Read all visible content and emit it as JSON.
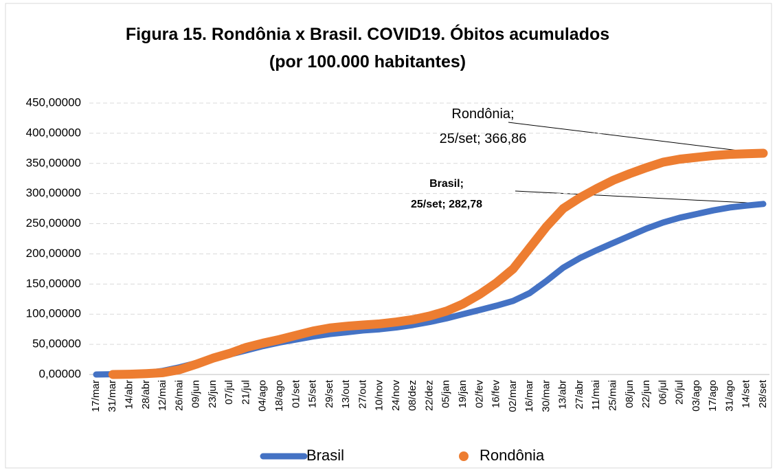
{
  "chart_data": {
    "type": "line",
    "title_lines": [
      "Figura 15. Rondônia x Brasil. COVID19. Óbitos acumulados",
      "(por 100.000 habitantes)"
    ],
    "categories": [
      "17/mar",
      "31/mar",
      "14/abr",
      "28/abr",
      "12/mai",
      "26/mai",
      "09/jun",
      "23/jun",
      "07/jul",
      "21/jul",
      "04/ago",
      "18/ago",
      "01/set",
      "15/set",
      "29/set",
      "13/out",
      "27/out",
      "10/nov",
      "24/nov",
      "08/dez",
      "22/dez",
      "05/jan",
      "19/jan",
      "02/fev",
      "16/fev",
      "02/mar",
      "16/mar",
      "30/mar",
      "13/abr",
      "27/abr",
      "11/mai",
      "25/mai",
      "08/jun",
      "22/jun",
      "06/jul",
      "20/jul",
      "03/ago",
      "17/ago",
      "31/ago",
      "14/set",
      "28/set"
    ],
    "series": [
      {
        "name": "Brasil",
        "color": "#4472c4",
        "values": [
          0,
          0.5,
          1,
          2.5,
          6,
          12,
          19,
          26,
          33,
          40,
          47,
          53,
          58,
          63,
          67,
          70,
          73,
          75,
          78,
          82,
          87,
          93,
          100,
          107,
          114,
          122,
          135,
          155,
          177,
          193,
          206,
          218,
          230,
          242,
          252,
          260,
          266,
          272,
          277,
          280,
          282.78
        ]
      },
      {
        "name": "Rondônia",
        "color": "#ed7d31",
        "values": [
          null,
          0,
          0.5,
          1.5,
          3,
          8,
          17,
          27,
          35,
          45,
          52,
          58,
          65,
          72,
          77,
          80,
          82,
          84,
          87,
          91,
          97,
          105,
          117,
          133,
          152,
          175,
          210,
          245,
          275,
          293,
          308,
          322,
          333,
          343,
          352,
          357,
          360,
          363,
          365,
          366,
          366.86
        ]
      }
    ],
    "annotations": [
      {
        "lines": [
          "Rondônia;",
          "25/set; 366,86"
        ]
      },
      {
        "lines": [
          "Brasil;",
          "25/set; 282,78"
        ]
      }
    ],
    "ylim": [
      0,
      450
    ],
    "yticks": [
      {
        "value": 0,
        "label": "0,00000"
      },
      {
        "value": 50,
        "label": "50,00000"
      },
      {
        "value": 100,
        "label": "100,00000"
      },
      {
        "value": 150,
        "label": "150,00000"
      },
      {
        "value": 200,
        "label": "200,00000"
      },
      {
        "value": 250,
        "label": "250,00000"
      },
      {
        "value": 300,
        "label": "300,00000"
      },
      {
        "value": 350,
        "label": "350,00000"
      },
      {
        "value": 400,
        "label": "400,00000"
      },
      {
        "value": 450,
        "label": "450,00000"
      }
    ],
    "grid": true,
    "legend": "bottom"
  }
}
